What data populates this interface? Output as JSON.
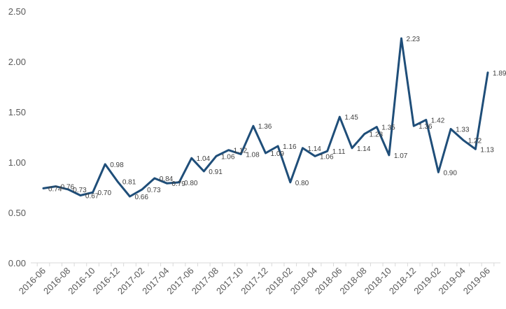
{
  "chart_data": {
    "type": "line",
    "title": "",
    "xlabel": "",
    "ylabel": "",
    "ylim": [
      0,
      2.5
    ],
    "yticks": [
      "0.00",
      "0.50",
      "1.00",
      "1.50",
      "2.00",
      "2.50"
    ],
    "grid": false,
    "legend": "none",
    "line_color": "#1f4e79",
    "categories": [
      "2016-06",
      "2016-07",
      "2016-08",
      "2016-09",
      "2016-10",
      "2016-11",
      "2016-12",
      "2017-01",
      "2017-02",
      "2017-03",
      "2017-04",
      "2017-05",
      "2017-06",
      "2017-07",
      "2017-08",
      "2017-09",
      "2017-10",
      "2017-11",
      "2017-12",
      "2018-01",
      "2018-02",
      "2018-03",
      "2018-04",
      "2018-05",
      "2018-06",
      "2018-07",
      "2018-08",
      "2018-09",
      "2018-10",
      "2018-11",
      "2018-12",
      "2019-01",
      "2019-02",
      "2019-03",
      "2019-04",
      "2019-05",
      "2019-06"
    ],
    "tick_labels": [
      "2016-06",
      "2016-08",
      "2016-10",
      "2016-12",
      "2017-02",
      "2017-04",
      "2017-06",
      "2017-08",
      "2017-10",
      "2017-12",
      "2018-02",
      "2018-04",
      "2018-06",
      "2018-08",
      "2018-10",
      "2018-12",
      "2019-02",
      "2019-04",
      "2019-06"
    ],
    "values": [
      0.74,
      0.76,
      0.73,
      0.67,
      0.7,
      0.98,
      0.81,
      0.66,
      0.73,
      0.84,
      0.79,
      0.8,
      1.04,
      0.91,
      1.06,
      1.12,
      1.08,
      1.36,
      1.09,
      1.16,
      0.8,
      1.14,
      1.06,
      1.11,
      1.45,
      1.14,
      1.28,
      1.35,
      1.07,
      2.23,
      1.36,
      1.42,
      0.9,
      1.33,
      1.22,
      1.13,
      1.89
    ],
    "data_labels": [
      "0.74",
      "0.76",
      "0.73",
      "0.67",
      "0.70",
      "0.98",
      "0.81",
      "0.66",
      "0.73",
      "0.84",
      "0.79",
      "0.80",
      "1.04",
      "0.91",
      "1.06",
      "1.12",
      "1.08",
      "1.36",
      "1.09",
      "1.16",
      "0.80",
      "1.14",
      "1.06",
      "1.11",
      "1.45",
      "1.14",
      "1.28",
      "1.35",
      "1.07",
      "2.23",
      "1.36",
      "1.42",
      "0.90",
      "1.33",
      "1.22",
      "1.13",
      "1.89"
    ]
  }
}
